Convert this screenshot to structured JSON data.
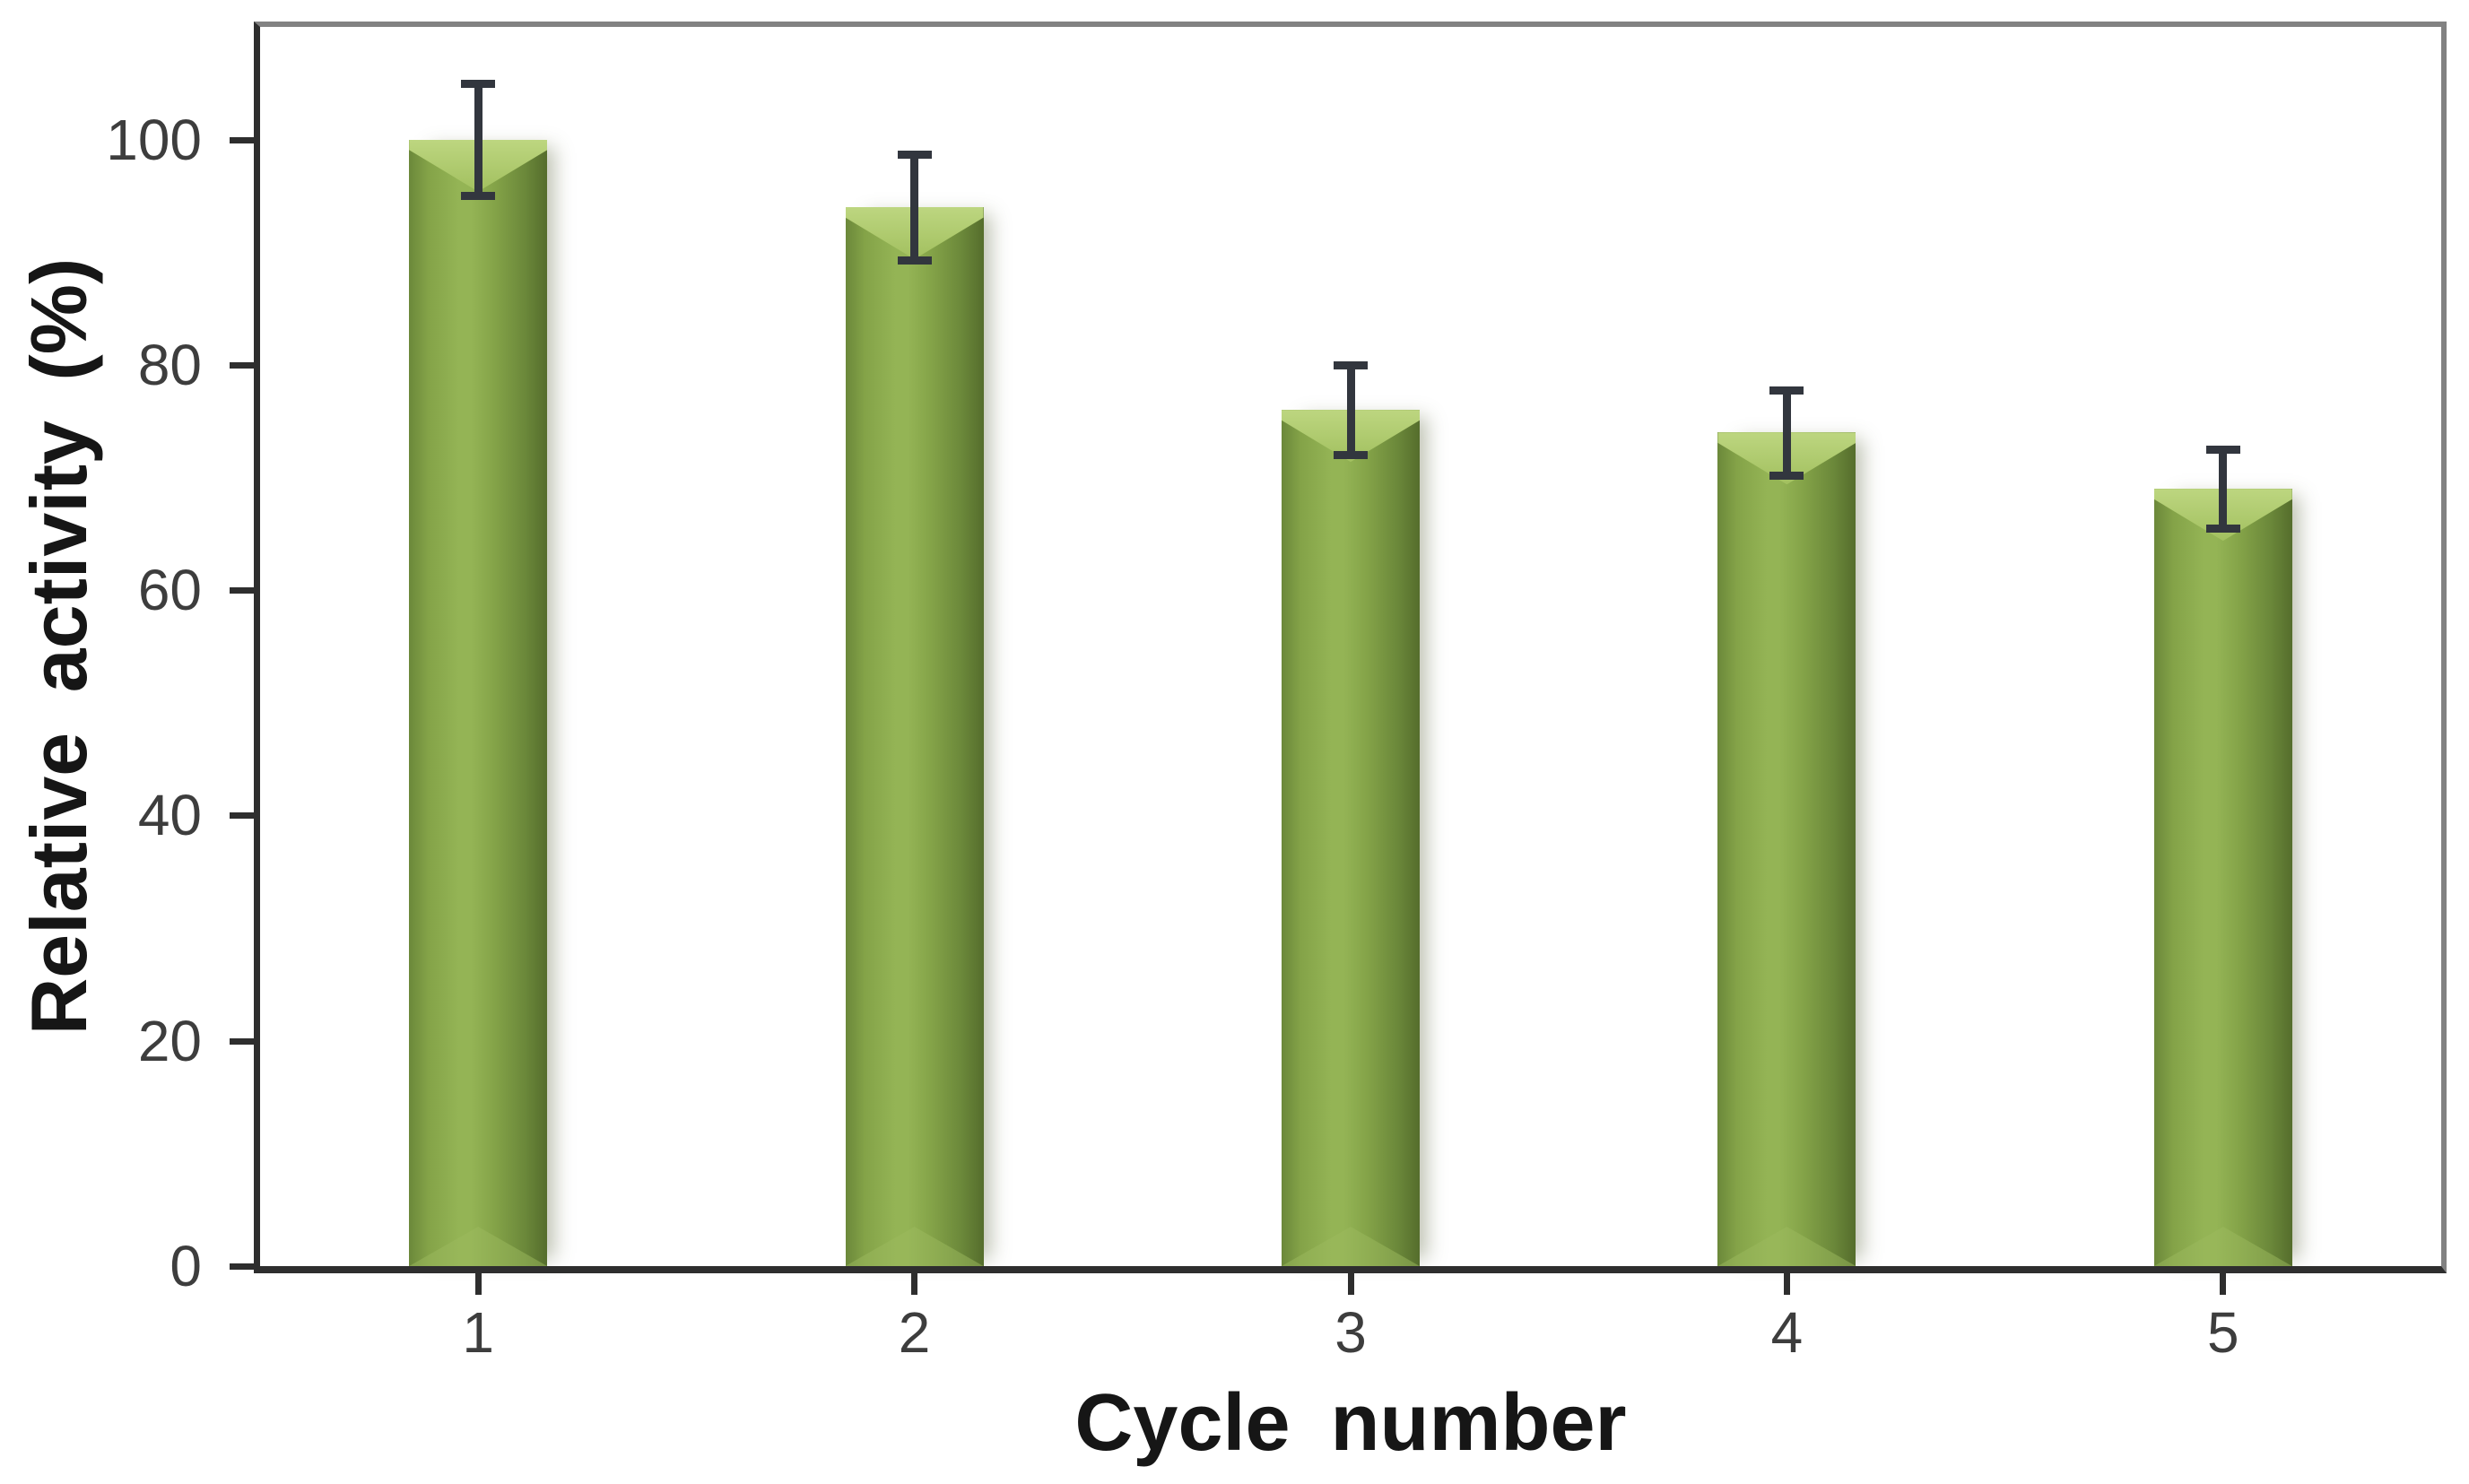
{
  "figure": {
    "background": "#ffffff"
  },
  "chart_data": {
    "type": "bar",
    "title": "",
    "xlabel": "Cycle number",
    "ylabel": "Relative activity (%)",
    "categories": [
      "1",
      "2",
      "3",
      "4",
      "5"
    ],
    "values": [
      100,
      94,
      76,
      74,
      69
    ],
    "errors": [
      5,
      4.7,
      4,
      3.8,
      3.5
    ],
    "ylim": [
      0,
      110
    ],
    "y_ticks": [
      0,
      20,
      40,
      60,
      80,
      100
    ],
    "grid": false,
    "legend": false,
    "colors": {
      "bar_light": "#94b455",
      "bar_mid": "#84a348",
      "bar_dark": "#6b883a",
      "bar_darkest": "#556d2c",
      "bevel_top_light": "#bdd680",
      "bevel_top_fade": "#a2c05f",
      "bevel_bottom": "#9cba5e",
      "error_bar": "#32363e",
      "axis": "#2e2e2e",
      "frame": "#828282",
      "tick_label": "#3d3d3d"
    }
  }
}
